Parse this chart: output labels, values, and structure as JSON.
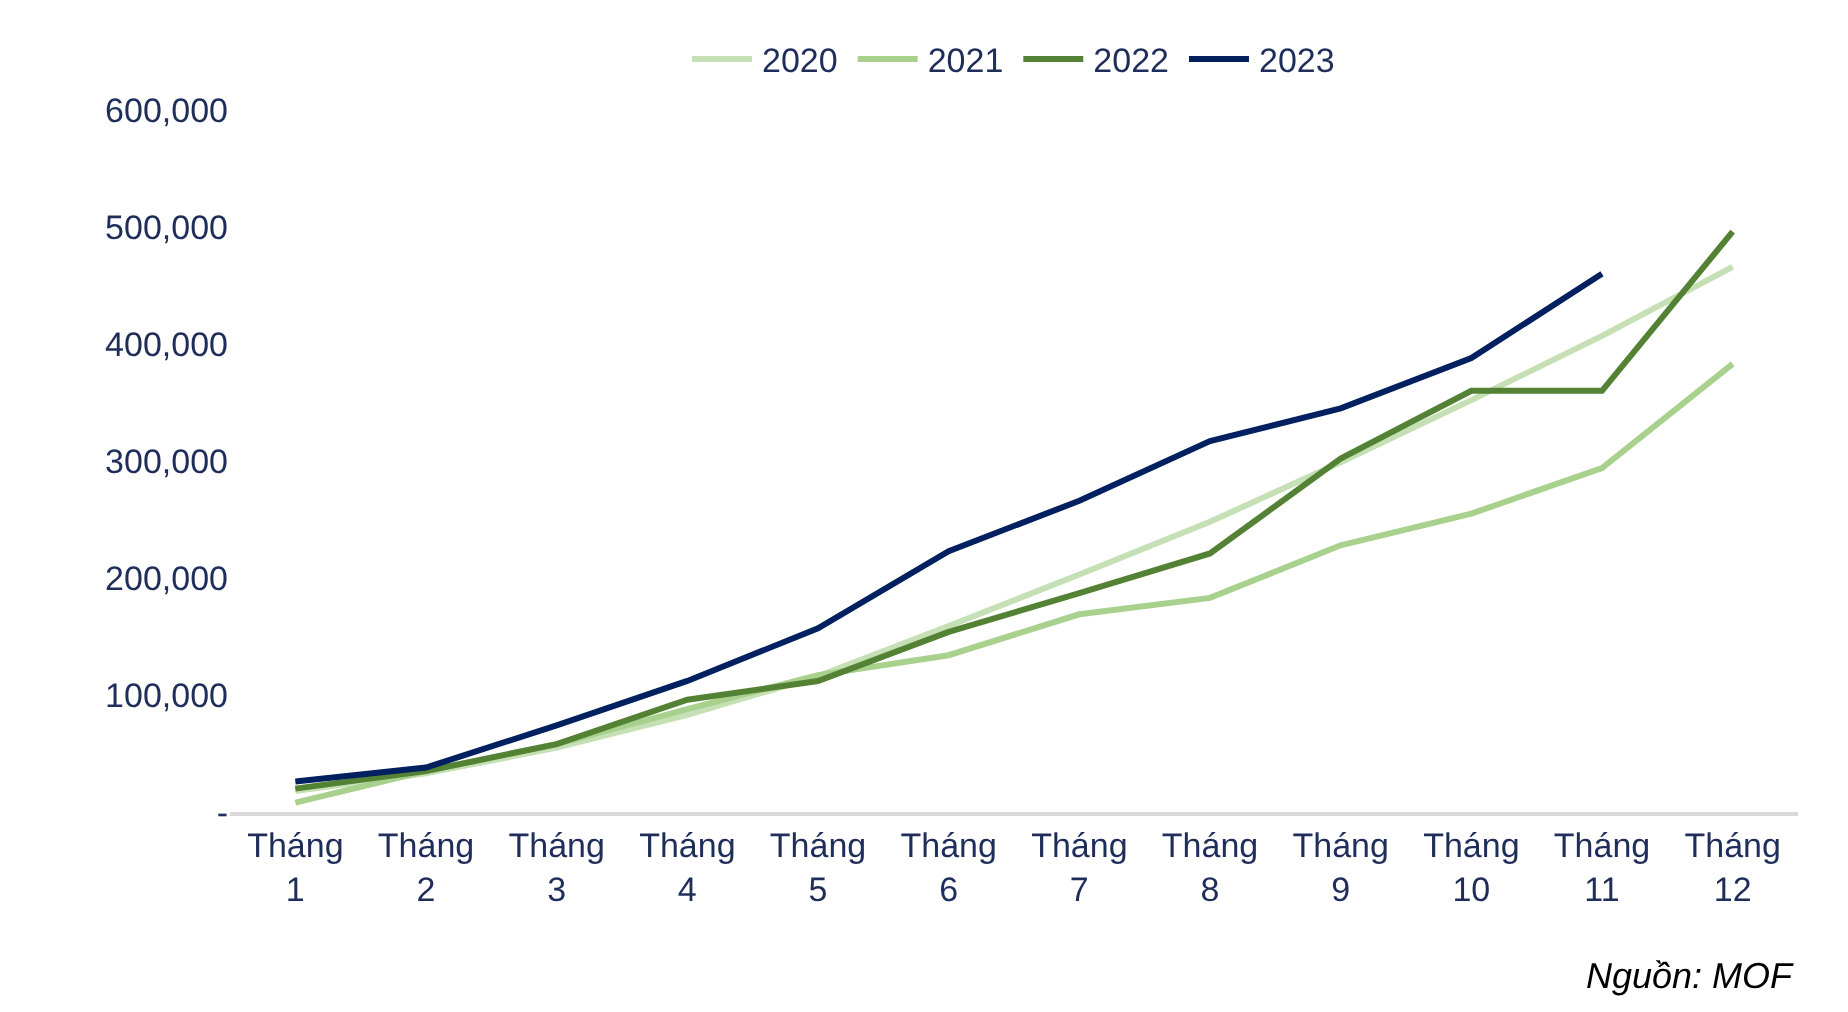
{
  "chart_data": {
    "type": "line",
    "categories": [
      "Tháng 1",
      "Tháng 2",
      "Tháng 3",
      "Tháng 4",
      "Tháng 5",
      "Tháng 6",
      "Tháng 7",
      "Tháng 8",
      "Tháng 9",
      "Tháng 10",
      "Tháng 11",
      "Tháng 12"
    ],
    "series": [
      {
        "name": "2020",
        "color": "#c5e0b4",
        "values": [
          18000,
          33000,
          55000,
          83000,
          116000,
          159000,
          203000,
          248000,
          299000,
          352000,
          407000,
          466000
        ]
      },
      {
        "name": "2021",
        "color": "#a9d18e",
        "values": [
          8000,
          35000,
          58000,
          88000,
          117000,
          134000,
          169000,
          183000,
          228000,
          255000,
          294000,
          383000
        ]
      },
      {
        "name": "2022",
        "color": "#548235",
        "values": [
          20000,
          35000,
          58000,
          96000,
          112000,
          154000,
          187000,
          221000,
          302000,
          360000,
          360000,
          496000
        ]
      },
      {
        "name": "2023",
        "color": "#002060",
        "values": [
          26000,
          38000,
          74000,
          112000,
          157000,
          223000,
          266000,
          317000,
          345000,
          388000,
          460000,
          null
        ]
      }
    ],
    "ylim": [
      0,
      600000
    ],
    "yticks": [
      {
        "value": 0,
        "label": "-"
      },
      {
        "value": 100000,
        "label": "100,000"
      },
      {
        "value": 200000,
        "label": "200,000"
      },
      {
        "value": 300000,
        "label": "300,000"
      },
      {
        "value": 400000,
        "label": "400,000"
      },
      {
        "value": 500000,
        "label": "500,000"
      },
      {
        "value": 600000,
        "label": "600,000"
      }
    ],
    "grid": false,
    "legend": "top",
    "marker": "none",
    "line_style": "solid",
    "annotations": [
      "Nguồn: MOF"
    ]
  }
}
